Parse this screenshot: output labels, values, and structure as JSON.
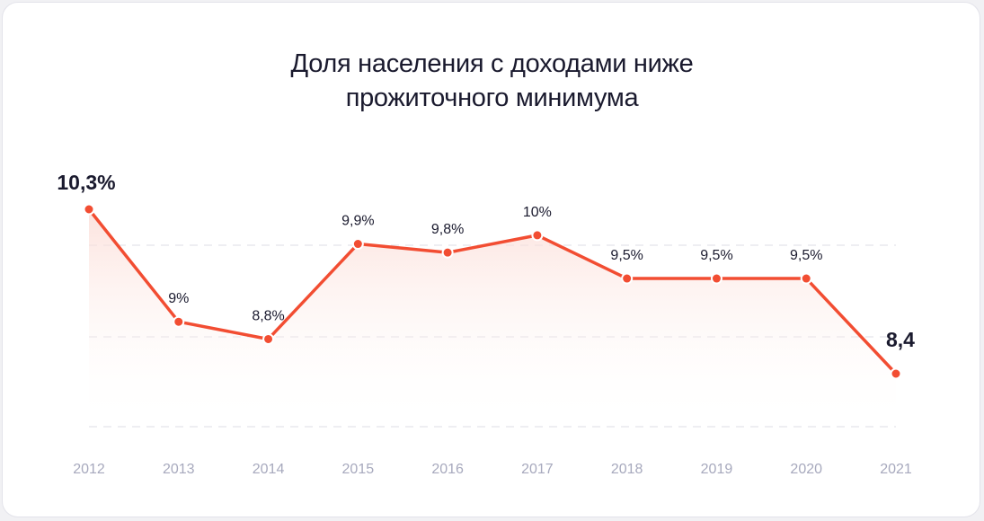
{
  "chart_data": {
    "type": "line",
    "title_line1": "Доля населения с доходами ниже",
    "title_line2": "прожиточного минимума",
    "categories": [
      "2012",
      "2013",
      "2014",
      "2015",
      "2016",
      "2017",
      "2018",
      "2019",
      "2020",
      "2021"
    ],
    "values": [
      10.3,
      9.0,
      8.8,
      9.9,
      9.8,
      10.0,
      9.5,
      9.5,
      9.5,
      8.4
    ],
    "data_labels": [
      "10,3%",
      "9%",
      "8,8%",
      "9,9%",
      "9,8%",
      "10%",
      "9,5%",
      "9,5%",
      "9,5%",
      "8,4"
    ],
    "emphasized_labels": [
      0,
      9
    ],
    "grid": true,
    "colors": {
      "line": "#f24d32",
      "fill": "#fde5e0",
      "grid": "#e4e4ea",
      "tick": "#a7a9bd",
      "label": "#1a1a2e"
    }
  }
}
